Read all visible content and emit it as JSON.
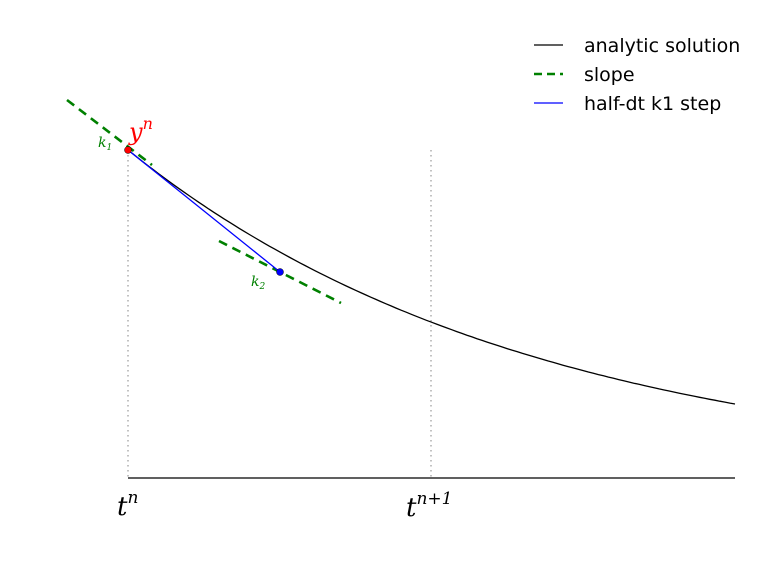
{
  "legend": {
    "items": [
      {
        "label": "analytic solution",
        "color": "#000000",
        "style": "solid"
      },
      {
        "label": "slope",
        "color": "#008000",
        "style": "dashed"
      },
      {
        "label": "half-dt k1 step",
        "color": "#0000ff",
        "style": "solid"
      }
    ]
  },
  "labels": {
    "y_n": {
      "base": "y",
      "sup": "n",
      "color": "#ff0000"
    },
    "k1": {
      "base": "k",
      "sub": "1",
      "color": "#008000"
    },
    "k2": {
      "base": "k",
      "sub": "2",
      "color": "#008000"
    },
    "t_n": {
      "base": "t",
      "sup": "n"
    },
    "t_n1": {
      "base": "t",
      "sup": "n+1"
    }
  },
  "colors": {
    "analytic": "#000000",
    "slope": "#008000",
    "step": "#0000ff",
    "point_start": "#ff0000",
    "point_mid": "#0000ff",
    "guide": "#999999"
  }
}
